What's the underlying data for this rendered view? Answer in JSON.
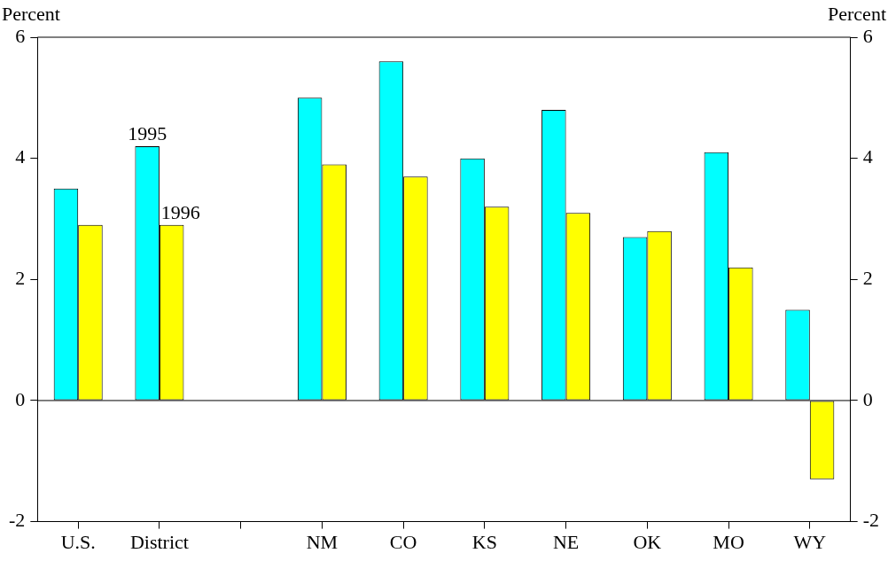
{
  "chart_data": {
    "type": "bar",
    "ylabel": "Percent",
    "y2label": "Percent",
    "categories": [
      "U.S.",
      "District",
      null,
      "NM",
      "CO",
      "KS",
      "NE",
      "OK",
      "MO",
      "WY"
    ],
    "series": [
      {
        "color": "#00ffff",
        "values": [
          3.5,
          4.2,
          null,
          5.0,
          5.6,
          4.0,
          4.8,
          2.7,
          4.1,
          1.5
        ]
      },
      {
        "color": "#ffff00",
        "values": [
          2.9,
          2.9,
          null,
          3.9,
          3.7,
          3.2,
          3.1,
          2.8,
          2.2,
          -1.3
        ]
      }
    ],
    "ylim": [
      -2,
      6
    ],
    "yticks": [
      -2,
      0,
      2,
      4,
      6
    ],
    "y2lim": [
      -2,
      6
    ],
    "y2ticks": [
      -2,
      0,
      2,
      4,
      6
    ],
    "annotations": [
      {
        "text": "1995",
        "x": "District",
        "y": 4.2
      },
      {
        "text": "1996",
        "x": "District",
        "y": 2.9
      }
    ],
    "ref_lines": [
      {
        "axis": "y",
        "value": 0,
        "color": "#000000"
      }
    ],
    "legend": false
  }
}
